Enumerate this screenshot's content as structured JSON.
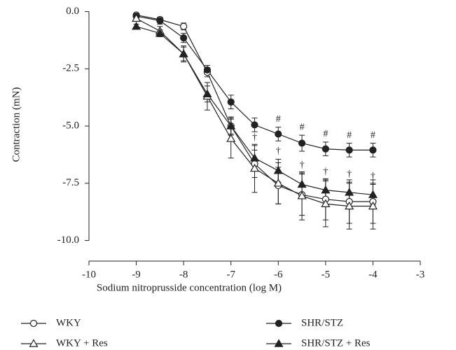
{
  "chart_data": {
    "type": "line",
    "x_label": "Sodium nitroprusside concentration (log M)",
    "y_label": "Contraction (mN)",
    "x": [
      -9,
      -8.5,
      -8,
      -7.5,
      -7,
      -6.5,
      -6,
      -5.5,
      -5,
      -4.5,
      -4
    ],
    "xlim": [
      -10,
      -3
    ],
    "xticks": [
      -10,
      -9,
      -8,
      -7,
      -6,
      -5,
      -4,
      -3
    ],
    "ylim": [
      -10.9,
      0.2
    ],
    "yticks": [
      {
        "value": 0,
        "label": "0.0"
      },
      -2.5,
      {
        "value": -5,
        "label": "-5.0"
      },
      -7.5,
      {
        "value": -10,
        "label": "-10.0"
      }
    ],
    "series": [
      {
        "name": "WKY",
        "color": "#222222",
        "marker": "circle",
        "filled": false,
        "values": [
          -0.15,
          -0.35,
          -0.65,
          -2.65,
          -5.0,
          -6.65,
          -7.6,
          -8.0,
          -8.2,
          -8.3,
          -8.3
        ],
        "errors": [
          0.05,
          0.1,
          0.15,
          0.2,
          0.35,
          0.6,
          0.8,
          0.9,
          0.9,
          0.95,
          0.95
        ]
      },
      {
        "name": "SHR/STZ",
        "color": "#222222",
        "marker": "circle",
        "filled": true,
        "values": [
          -0.2,
          -0.4,
          -1.15,
          -2.55,
          -3.95,
          -4.95,
          -5.35,
          -5.75,
          -6.0,
          -6.05,
          -6.05
        ],
        "errors": [
          0.1,
          0.15,
          0.2,
          0.2,
          0.3,
          0.3,
          0.3,
          0.35,
          0.3,
          0.3,
          0.3
        ],
        "annotations": [
          null,
          null,
          null,
          null,
          null,
          null,
          "#",
          "#",
          "#",
          "#",
          "#"
        ]
      },
      {
        "name": "WKY + Res",
        "color": "#222222",
        "marker": "triangle",
        "filled": false,
        "values": [
          -0.3,
          -0.85,
          -1.85,
          -3.7,
          -5.55,
          -6.85,
          -7.5,
          -8.05,
          -8.4,
          -8.5,
          -8.5
        ],
        "errors": [
          0.1,
          0.2,
          0.35,
          0.6,
          0.85,
          1.05,
          0.9,
          1.05,
          1.0,
          1.0,
          1.0
        ]
      },
      {
        "name": "SHR/STZ + Res",
        "color": "#222222",
        "marker": "triangle",
        "filled": true,
        "values": [
          -0.65,
          -0.95,
          -1.85,
          -3.6,
          -5.0,
          -6.4,
          -6.95,
          -7.55,
          -7.8,
          -7.9,
          -8.0
        ],
        "errors": [
          0.1,
          0.15,
          0.3,
          0.35,
          0.4,
          0.55,
          0.5,
          0.5,
          0.45,
          0.45,
          0.45
        ],
        "annotations": [
          null,
          null,
          null,
          null,
          null,
          "†",
          "†",
          "†",
          "†",
          "†",
          "†"
        ]
      }
    ]
  }
}
